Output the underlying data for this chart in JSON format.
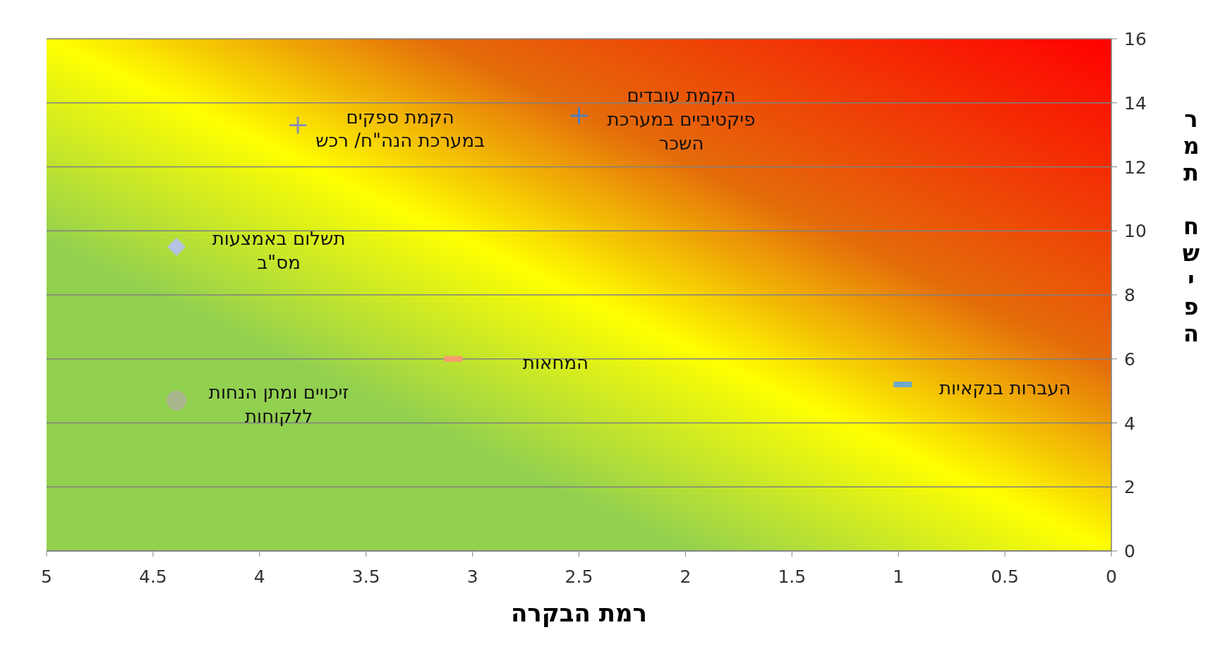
{
  "chart_data": {
    "type": "scatter",
    "xlabel": "רמת הבקרה",
    "ylabel": "רמת חשיפה",
    "xlim": [
      5,
      0
    ],
    "xticks": [
      5,
      4.5,
      4,
      3.5,
      3,
      2.5,
      2,
      1.5,
      1,
      0.5,
      0
    ],
    "ylim": [
      0,
      16
    ],
    "yticks": [
      0,
      2,
      4,
      6,
      8,
      10,
      12,
      14,
      16
    ],
    "grid": "y",
    "series": [
      {
        "name": "הקמת עובדים פיקטיביים במערכת השכר",
        "color": "#4a7ebb",
        "marker": "cross",
        "x": [
          2.5
        ],
        "values": [
          13.6
        ]
      },
      {
        "name": "הקמת ספקים במערכת הנה\"ח/ רכש",
        "color": "#8b8fb5",
        "marker": "cross",
        "x": [
          3.82
        ],
        "values": [
          13.3
        ]
      },
      {
        "name": "תשלום באמצעות מס\"ב",
        "color": "#b4c3e3",
        "marker": "diamond",
        "x": [
          4.39
        ],
        "values": [
          9.5
        ]
      },
      {
        "name": "זיכויים ומתן הנחות ללקוחות",
        "color": "#a9b58c",
        "marker": "circle",
        "x": [
          4.39
        ],
        "values": [
          4.7
        ]
      },
      {
        "name": "המחאות",
        "color": "#f79b6f",
        "marker": "square",
        "x": [
          3.09
        ],
        "values": [
          6.0
        ]
      },
      {
        "name": "העברות בנקאיות",
        "color": "#6fa8c8",
        "marker": "square",
        "x": [
          0.98
        ],
        "values": [
          5.2
        ]
      }
    ]
  }
}
